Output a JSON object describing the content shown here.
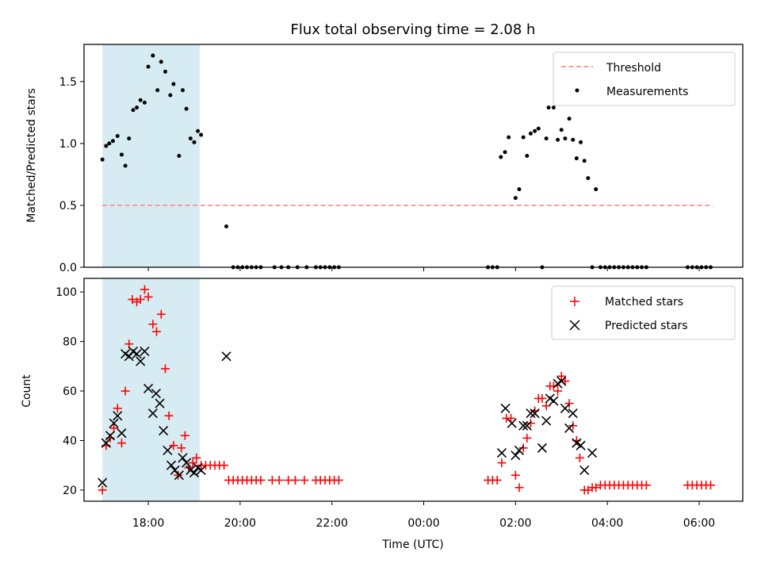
{
  "chart_data": [
    {
      "type": "scatter",
      "title": "Flux total observing time = 2.08 h",
      "xlabel": "",
      "ylabel": "Matched/Predicted stars",
      "xlim_hours": [
        16.6,
        30.95
      ],
      "ylim": [
        0,
        1.8
      ],
      "yticks": [
        0.0,
        0.5,
        1.0,
        1.5
      ],
      "ytick_labels": [
        "0.0",
        "0.5",
        "1.0",
        "1.5"
      ],
      "xticks_hours": [
        18,
        20,
        22,
        24,
        26,
        28,
        30
      ],
      "xtick_labels": [
        "18:00",
        "20:00",
        "22:00",
        "00:00",
        "02:00",
        "04:00",
        "06:00"
      ],
      "show_xtick_labels": false,
      "shaded_span_hours": [
        17.0,
        19.12
      ],
      "shade_color": "#add8e6",
      "legend_position": "upper right",
      "legend": [
        {
          "label": "Threshold",
          "marker": "dashed-line",
          "color": "#ff7f7f"
        },
        {
          "label": "Measurements",
          "marker": "dot",
          "color": "#000000"
        }
      ],
      "threshold": {
        "name": "Threshold",
        "value": 0.5,
        "x_range_hours": [
          17.0,
          30.3
        ],
        "color": "#ff7f7f"
      },
      "series": [
        {
          "name": "Measurements",
          "marker": "dot",
          "color": "#000000",
          "points": [
            [
              17.0,
              0.87
            ],
            [
              17.08,
              0.98
            ],
            [
              17.15,
              1.0
            ],
            [
              17.23,
              1.02
            ],
            [
              17.33,
              1.06
            ],
            [
              17.42,
              0.91
            ],
            [
              17.5,
              0.82
            ],
            [
              17.58,
              1.04
            ],
            [
              17.67,
              1.27
            ],
            [
              17.75,
              1.29
            ],
            [
              17.83,
              1.35
            ],
            [
              17.92,
              1.33
            ],
            [
              18.0,
              1.62
            ],
            [
              18.1,
              1.71
            ],
            [
              18.2,
              1.43
            ],
            [
              18.28,
              1.66
            ],
            [
              18.37,
              1.58
            ],
            [
              18.48,
              1.39
            ],
            [
              18.55,
              1.48
            ],
            [
              18.67,
              0.9
            ],
            [
              18.75,
              1.43
            ],
            [
              18.83,
              1.28
            ],
            [
              18.92,
              1.04
            ],
            [
              19.0,
              1.01
            ],
            [
              19.08,
              1.1
            ],
            [
              19.15,
              1.07
            ],
            [
              19.7,
              0.33
            ],
            [
              19.85,
              0.0
            ],
            [
              19.95,
              0.0
            ],
            [
              20.05,
              0.0
            ],
            [
              20.15,
              0.0
            ],
            [
              20.25,
              0.0
            ],
            [
              20.35,
              0.0
            ],
            [
              20.45,
              0.0
            ],
            [
              20.75,
              0.0
            ],
            [
              20.9,
              0.0
            ],
            [
              21.05,
              0.0
            ],
            [
              21.25,
              0.0
            ],
            [
              21.45,
              0.0
            ],
            [
              21.65,
              0.0
            ],
            [
              21.75,
              0.0
            ],
            [
              21.85,
              0.0
            ],
            [
              21.95,
              0.0
            ],
            [
              22.05,
              0.0
            ],
            [
              22.15,
              0.0
            ],
            [
              25.4,
              0.0
            ],
            [
              25.5,
              0.0
            ],
            [
              25.6,
              0.0
            ],
            [
              25.68,
              0.89
            ],
            [
              25.77,
              0.93
            ],
            [
              25.85,
              1.05
            ],
            [
              26.0,
              0.56
            ],
            [
              26.08,
              0.63
            ],
            [
              26.17,
              1.05
            ],
            [
              26.25,
              0.9
            ],
            [
              26.33,
              1.08
            ],
            [
              26.42,
              1.1
            ],
            [
              26.5,
              1.12
            ],
            [
              26.58,
              0.0
            ],
            [
              26.67,
              1.04
            ],
            [
              26.72,
              1.29
            ],
            [
              26.83,
              1.29
            ],
            [
              26.92,
              1.03
            ],
            [
              27.0,
              1.11
            ],
            [
              27.08,
              1.04
            ],
            [
              27.17,
              1.2
            ],
            [
              27.25,
              1.03
            ],
            [
              27.33,
              0.88
            ],
            [
              27.42,
              1.01
            ],
            [
              27.5,
              0.86
            ],
            [
              27.58,
              0.72
            ],
            [
              27.67,
              0.0
            ],
            [
              27.75,
              0.63
            ],
            [
              27.85,
              0.0
            ],
            [
              27.95,
              0.0
            ],
            [
              28.05,
              0.0
            ],
            [
              28.15,
              0.0
            ],
            [
              28.25,
              0.0
            ],
            [
              28.35,
              0.0
            ],
            [
              28.45,
              0.0
            ],
            [
              28.55,
              0.0
            ],
            [
              28.65,
              0.0
            ],
            [
              28.75,
              0.0
            ],
            [
              28.85,
              0.0
            ],
            [
              29.75,
              0.0
            ],
            [
              29.85,
              0.0
            ],
            [
              29.95,
              0.0
            ],
            [
              30.05,
              0.0
            ],
            [
              30.15,
              0.0
            ],
            [
              30.25,
              0.0
            ]
          ]
        }
      ]
    },
    {
      "type": "scatter",
      "title": "",
      "xlabel": "Time (UTC)",
      "ylabel": "Count",
      "xlim_hours": [
        16.6,
        30.95
      ],
      "ylim": [
        15.5,
        105.5
      ],
      "yticks": [
        20,
        40,
        60,
        80,
        100
      ],
      "ytick_labels": [
        "20",
        "40",
        "60",
        "80",
        "100"
      ],
      "xticks_hours": [
        18,
        20,
        22,
        24,
        26,
        28,
        30
      ],
      "xtick_labels": [
        "18:00",
        "20:00",
        "22:00",
        "00:00",
        "02:00",
        "04:00",
        "06:00"
      ],
      "show_xtick_labels": true,
      "shaded_span_hours": [
        17.0,
        19.12
      ],
      "shade_color": "#add8e6",
      "legend_position": "upper right",
      "legend": [
        {
          "label": "Matched stars",
          "marker": "plus",
          "color": "#ff0000"
        },
        {
          "label": "Predicted stars",
          "marker": "x",
          "color": "#000000"
        }
      ],
      "series": [
        {
          "name": "Matched stars",
          "marker": "plus",
          "color": "#ff0000",
          "points": [
            [
              17.0,
              20
            ],
            [
              17.08,
              38
            ],
            [
              17.17,
              41
            ],
            [
              17.25,
              45
            ],
            [
              17.33,
              53
            ],
            [
              17.42,
              39
            ],
            [
              17.5,
              60
            ],
            [
              17.58,
              79
            ],
            [
              17.65,
              97
            ],
            [
              17.75,
              96
            ],
            [
              17.83,
              97
            ],
            [
              17.92,
              101
            ],
            [
              18.0,
              98
            ],
            [
              18.1,
              87
            ],
            [
              18.18,
              84
            ],
            [
              18.28,
              91
            ],
            [
              18.37,
              69
            ],
            [
              18.45,
              50
            ],
            [
              18.55,
              38
            ],
            [
              18.65,
              26
            ],
            [
              18.72,
              37
            ],
            [
              18.8,
              42
            ],
            [
              18.88,
              29
            ],
            [
              18.97,
              31
            ],
            [
              19.05,
              33
            ],
            [
              19.15,
              30
            ],
            [
              19.25,
              30
            ],
            [
              19.35,
              30
            ],
            [
              19.45,
              30
            ],
            [
              19.55,
              30
            ],
            [
              19.65,
              30
            ],
            [
              19.75,
              24
            ],
            [
              19.85,
              24
            ],
            [
              19.95,
              24
            ],
            [
              20.05,
              24
            ],
            [
              20.15,
              24
            ],
            [
              20.25,
              24
            ],
            [
              20.35,
              24
            ],
            [
              20.45,
              24
            ],
            [
              20.7,
              24
            ],
            [
              20.85,
              24
            ],
            [
              21.05,
              24
            ],
            [
              21.2,
              24
            ],
            [
              21.4,
              24
            ],
            [
              21.65,
              24
            ],
            [
              21.75,
              24
            ],
            [
              21.85,
              24
            ],
            [
              21.95,
              24
            ],
            [
              22.05,
              24
            ],
            [
              22.15,
              24
            ],
            [
              25.4,
              24
            ],
            [
              25.5,
              24
            ],
            [
              25.6,
              24
            ],
            [
              25.7,
              31
            ],
            [
              25.8,
              49
            ],
            [
              25.9,
              49
            ],
            [
              26.0,
              26
            ],
            [
              26.08,
              21
            ],
            [
              26.17,
              37
            ],
            [
              26.25,
              41
            ],
            [
              26.33,
              47
            ],
            [
              26.42,
              52
            ],
            [
              26.5,
              57
            ],
            [
              26.58,
              57
            ],
            [
              26.67,
              54
            ],
            [
              26.75,
              62
            ],
            [
              26.83,
              62
            ],
            [
              26.92,
              60
            ],
            [
              27.0,
              66
            ],
            [
              27.08,
              64
            ],
            [
              27.17,
              55
            ],
            [
              27.25,
              46
            ],
            [
              27.33,
              40
            ],
            [
              27.4,
              33
            ],
            [
              27.5,
              20
            ],
            [
              27.58,
              20
            ],
            [
              27.67,
              21
            ],
            [
              27.75,
              21
            ],
            [
              27.85,
              22
            ],
            [
              27.95,
              22
            ],
            [
              28.05,
              22
            ],
            [
              28.15,
              22
            ],
            [
              28.25,
              22
            ],
            [
              28.35,
              22
            ],
            [
              28.45,
              22
            ],
            [
              28.55,
              22
            ],
            [
              28.65,
              22
            ],
            [
              28.75,
              22
            ],
            [
              28.85,
              22
            ],
            [
              29.75,
              22
            ],
            [
              29.85,
              22
            ],
            [
              29.95,
              22
            ],
            [
              30.05,
              22
            ],
            [
              30.15,
              22
            ],
            [
              30.25,
              22
            ]
          ]
        },
        {
          "name": "Predicted stars",
          "marker": "x",
          "color": "#000000",
          "points": [
            [
              17.0,
              23
            ],
            [
              17.08,
              39
            ],
            [
              17.17,
              42
            ],
            [
              17.25,
              47
            ],
            [
              17.33,
              50
            ],
            [
              17.42,
              43
            ],
            [
              17.5,
              75
            ],
            [
              17.58,
              74
            ],
            [
              17.67,
              76
            ],
            [
              17.75,
              75
            ],
            [
              17.83,
              72
            ],
            [
              17.92,
              76
            ],
            [
              18.0,
              61
            ],
            [
              18.1,
              51
            ],
            [
              18.17,
              59
            ],
            [
              18.25,
              55
            ],
            [
              18.33,
              44
            ],
            [
              18.42,
              36
            ],
            [
              18.5,
              30
            ],
            [
              18.58,
              28
            ],
            [
              18.67,
              26
            ],
            [
              18.75,
              33
            ],
            [
              18.83,
              31
            ],
            [
              18.92,
              28
            ],
            [
              19.0,
              27
            ],
            [
              19.08,
              29
            ],
            [
              19.15,
              28
            ],
            [
              19.7,
              74
            ],
            [
              25.7,
              35
            ],
            [
              25.78,
              53
            ],
            [
              25.92,
              47
            ],
            [
              26.0,
              34
            ],
            [
              26.08,
              36
            ],
            [
              26.17,
              46
            ],
            [
              26.25,
              46
            ],
            [
              26.33,
              51
            ],
            [
              26.42,
              51
            ],
            [
              26.58,
              37
            ],
            [
              26.67,
              48
            ],
            [
              26.75,
              57
            ],
            [
              26.83,
              56
            ],
            [
              26.92,
              63
            ],
            [
              27.0,
              64
            ],
            [
              27.08,
              53
            ],
            [
              27.17,
              45
            ],
            [
              27.25,
              51
            ],
            [
              27.33,
              39
            ],
            [
              27.42,
              38
            ],
            [
              27.5,
              28
            ],
            [
              27.67,
              35
            ]
          ]
        }
      ]
    }
  ]
}
